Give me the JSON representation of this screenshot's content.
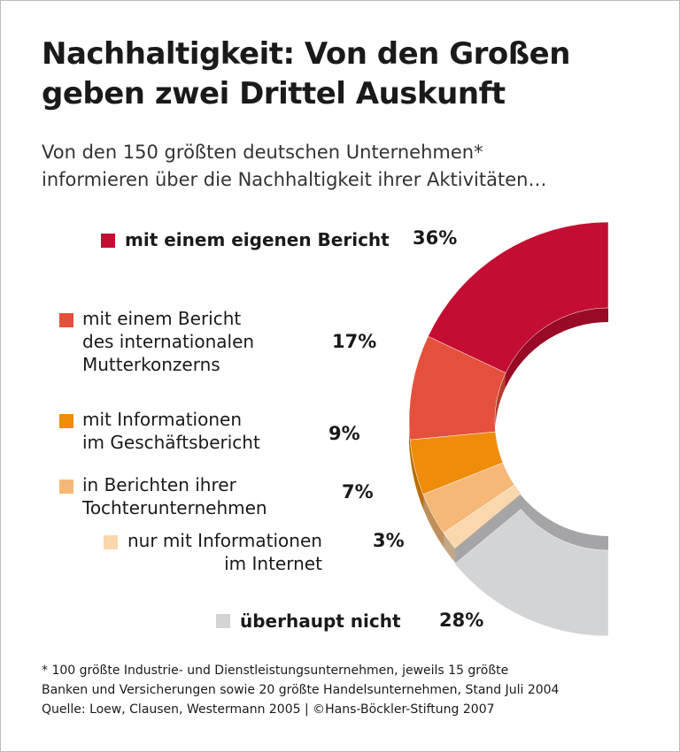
{
  "chart_data": {
    "type": "donut",
    "title": "Nachhaltigkeit: Von den Großen\ngeben zwei Drittel Auskunft",
    "subtitle": "Von den 150 größten deutschen Unternehmen*\ninformieren über die Nachhaltigkeit ihrer Aktivitäten…",
    "categories": [
      "mit einem eigenen Bericht",
      "mit einem Bericht\ndes internationalen\nMutterkonzerns",
      "mit Informationen\nim Geschäftsbericht",
      "in Berichten ihrer\nTochterunternehmen",
      "nur mit Informationen\nim Internet",
      "überhaupt nicht"
    ],
    "values": [
      36,
      17,
      9,
      7,
      3,
      28
    ],
    "value_labels": [
      "36%",
      "17%",
      "9%",
      "7%",
      "3%",
      "28%"
    ],
    "colors": [
      "#c40d32",
      "#e5503c",
      "#ef8c0a",
      "#f6b877",
      "#fad7ad",
      "#d3d4d6"
    ],
    "footnote": "* 100 größte Industrie- und Dienstleistungsunternehmen, jeweils 15 größte\nBanken und Versicherungen sowie 20 größte Handelsunternehmen, Stand Juli 2004",
    "source": "Quelle: Loew, Clausen, Westermann 2005 | ©Hans-Böckler-Stiftung 2007"
  }
}
